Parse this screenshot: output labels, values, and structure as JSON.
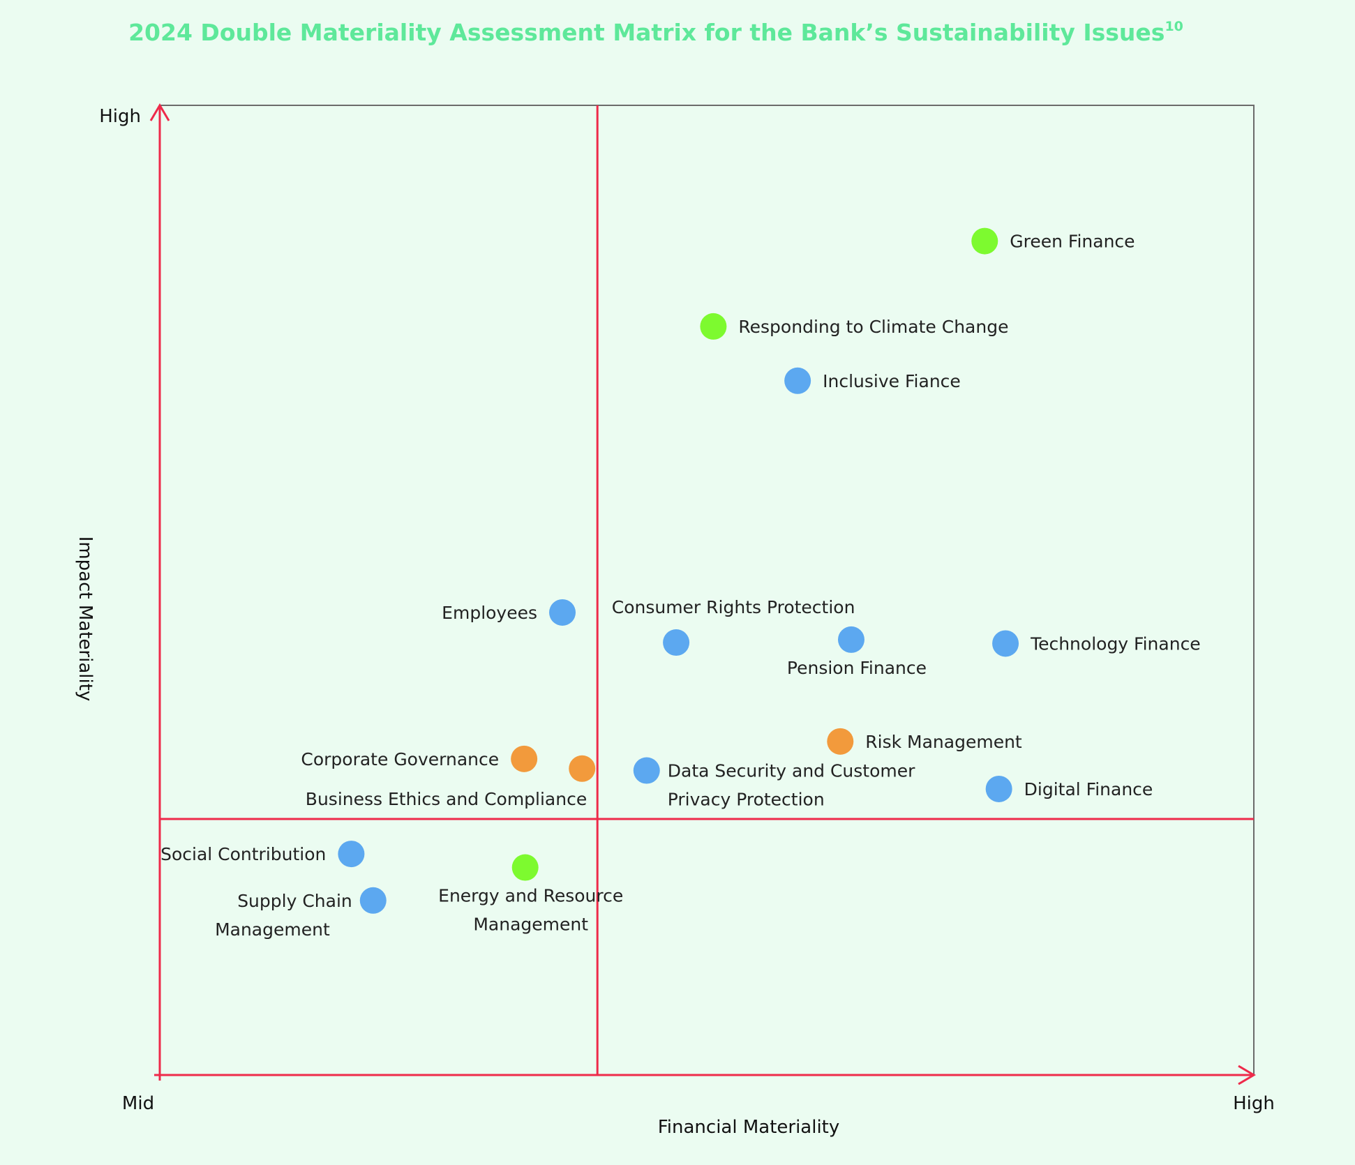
{
  "chart_data": {
    "type": "scatter",
    "title": "2024 Double Materiality Assessment Matrix for the Bank’s Sustainability Issues",
    "title_superscript": "10",
    "xlabel": "Financial Materiality",
    "ylabel": "Impact Materiality",
    "x_tick_labels": [
      "Mid",
      "High"
    ],
    "y_tick_labels": [
      "High"
    ],
    "xlim": [
      0,
      100
    ],
    "ylim": [
      0,
      100
    ],
    "quadrant_threshold": {
      "x": 40,
      "y": 26.4
    },
    "grid": false,
    "legend": "none",
    "colors": {
      "background": "#ebfcf1",
      "title": "#5ee89a",
      "axis_lines": "#ee2a4a",
      "frame": "#6b6b6b",
      "environmental": "#7dfa2f",
      "social": "#5ca8f0",
      "governance": "#f29a3c"
    },
    "points": [
      {
        "label_lines": [
          "Green Finance"
        ],
        "x": 75.4,
        "y": 86.0,
        "category": "environmental",
        "label_pos": "right"
      },
      {
        "label_lines": [
          "Responding to Climate Change"
        ],
        "x": 50.6,
        "y": 77.2,
        "category": "environmental",
        "label_pos": "right"
      },
      {
        "label_lines": [
          "Inclusive Fiance"
        ],
        "x": 58.3,
        "y": 71.6,
        "category": "social",
        "label_pos": "right"
      },
      {
        "label_lines": [
          "Employees"
        ],
        "x": 36.8,
        "y": 47.7,
        "category": "social",
        "label_pos": "left"
      },
      {
        "label_lines": [
          "Consumer Rights Protection"
        ],
        "x": 47.2,
        "y": 44.6,
        "category": "social",
        "label_pos": "above"
      },
      {
        "label_lines": [
          "Pension Finance"
        ],
        "x": 63.2,
        "y": 44.9,
        "category": "social",
        "label_pos": "below"
      },
      {
        "label_lines": [
          "Technology Finance"
        ],
        "x": 77.3,
        "y": 44.5,
        "category": "social",
        "label_pos": "right"
      },
      {
        "label_lines": [
          "Risk Management"
        ],
        "x": 62.2,
        "y": 34.4,
        "category": "governance",
        "label_pos": "right"
      },
      {
        "label_lines": [
          "Corporate Governance"
        ],
        "x": 33.3,
        "y": 32.6,
        "category": "governance",
        "label_pos": "left"
      },
      {
        "label_lines": [
          "Business Ethics and Compliance"
        ],
        "x": 38.6,
        "y": 31.6,
        "category": "governance",
        "label_pos": "below-left"
      },
      {
        "label_lines": [
          "Data Security and Customer",
          "Privacy Protection"
        ],
        "x": 44.5,
        "y": 31.4,
        "category": "social",
        "label_pos": "right-down"
      },
      {
        "label_lines": [
          "Digital Finance"
        ],
        "x": 76.7,
        "y": 29.5,
        "category": "social",
        "label_pos": "right"
      },
      {
        "label_lines": [
          "Social Contribution"
        ],
        "x": 17.5,
        "y": 22.8,
        "category": "social",
        "label_pos": "left"
      },
      {
        "label_lines": [
          "Energy and Resource",
          "Management"
        ],
        "x": 33.4,
        "y": 21.4,
        "category": "environmental",
        "label_pos": "below"
      },
      {
        "label_lines": [
          "Supply Chain",
          "Management"
        ],
        "x": 19.5,
        "y": 18.0,
        "category": "social",
        "label_pos": "left-down"
      }
    ]
  }
}
